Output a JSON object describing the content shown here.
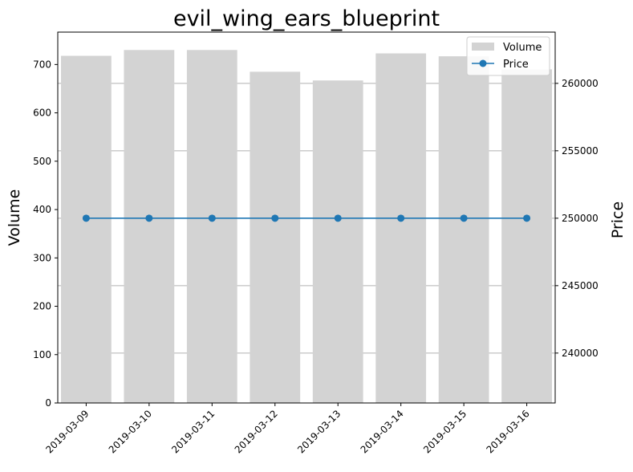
{
  "chart_data": {
    "type": "bar",
    "title": "evil_wing_ears_blueprint",
    "categories": [
      "2019-03-09",
      "2019-03-10",
      "2019-03-11",
      "2019-03-12",
      "2019-03-13",
      "2019-03-14",
      "2019-03-15",
      "2019-03-16"
    ],
    "series": [
      {
        "name": "Volume",
        "type": "bar",
        "axis": "left",
        "color": "#d3d3d3",
        "values": [
          718,
          730,
          730,
          685,
          667,
          723,
          717,
          690
        ]
      },
      {
        "name": "Price",
        "type": "line",
        "marker": "circle",
        "axis": "right",
        "color": "#1f77b4",
        "values": [
          250000,
          250000,
          250000,
          250000,
          250000,
          250000,
          250000,
          250000
        ]
      }
    ],
    "ylabel": "Volume",
    "y2label": "Price",
    "ylim": [
      0,
      767
    ],
    "y2lim": [
      236300,
      263800
    ],
    "yticks": [
      0,
      100,
      200,
      300,
      400,
      500,
      600,
      700
    ],
    "y2ticks": [
      240000,
      245000,
      250000,
      255000,
      260000
    ],
    "grid": "horizontal lines at right-axis ticks",
    "legend_position": "top-right"
  }
}
